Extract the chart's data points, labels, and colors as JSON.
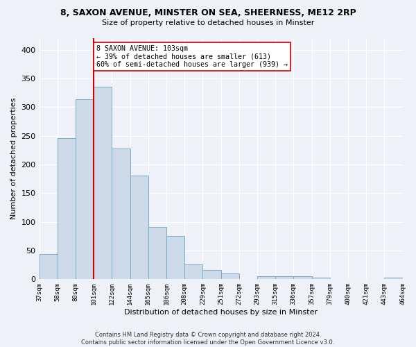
{
  "title_line1": "8, SAXON AVENUE, MINSTER ON SEA, SHEERNESS, ME12 2RP",
  "title_line2": "Size of property relative to detached houses in Minster",
  "xlabel": "Distribution of detached houses by size in Minster",
  "ylabel": "Number of detached properties",
  "bar_color": "#ccdaea",
  "bar_edge_color": "#7aaac8",
  "bar_heights": [
    44,
    246,
    313,
    335,
    228,
    180,
    91,
    75,
    26,
    16,
    10,
    0,
    5,
    5,
    5,
    3,
    0,
    0,
    0,
    3
  ],
  "tick_labels": [
    "37sqm",
    "58sqm",
    "80sqm",
    "101sqm",
    "122sqm",
    "144sqm",
    "165sqm",
    "186sqm",
    "208sqm",
    "229sqm",
    "251sqm",
    "272sqm",
    "293sqm",
    "315sqm",
    "336sqm",
    "357sqm",
    "379sqm",
    "400sqm",
    "421sqm",
    "443sqm",
    "464sqm"
  ],
  "property_bin": 3,
  "property_line_color": "#cc0000",
  "ylim": [
    0,
    420
  ],
  "yticks": [
    0,
    50,
    100,
    150,
    200,
    250,
    300,
    350,
    400
  ],
  "annotation_text": "8 SAXON AVENUE: 103sqm\n← 39% of detached houses are smaller (613)\n60% of semi-detached houses are larger (939) →",
  "annotation_box_color": "#ffffff",
  "annotation_box_edge": "#cc0000",
  "background_color": "#eef2f8",
  "grid_color": "#ffffff",
  "footer_line1": "Contains HM Land Registry data © Crown copyright and database right 2024.",
  "footer_line2": "Contains public sector information licensed under the Open Government Licence v3.0."
}
